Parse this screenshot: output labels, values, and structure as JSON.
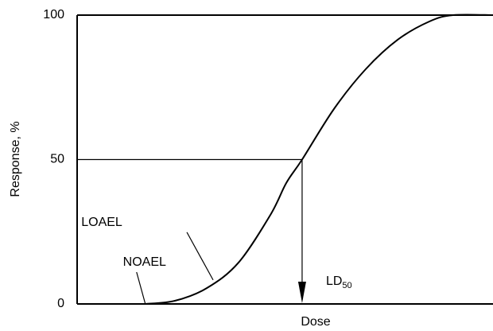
{
  "chart_data": {
    "type": "line",
    "xlabel": "Dose",
    "ylabel": "Response, %",
    "xlim": [
      0,
      100
    ],
    "ylim": [
      0,
      100
    ],
    "yticks": [
      0,
      50,
      100
    ],
    "series": [
      {
        "color": "#000000",
        "x": [
          16.4,
          23.5,
          31.2,
          38.8,
          46.5,
          50.3,
          54.1,
          61.8,
          69.4,
          77.1,
          84.7,
          90.4,
          100
        ],
        "values": [
          0,
          1.1,
          5.5,
          14.3,
          30.9,
          41.9,
          50,
          67.6,
          81.3,
          91.5,
          97.8,
          100,
          100
        ]
      }
    ],
    "annotations": [
      {
        "text": "NOAEL",
        "x": 16.4,
        "y": 0
      },
      {
        "text": "LOAEL",
        "x": 32.7,
        "y": 8.3
      }
    ],
    "ld50": {
      "text": "LD",
      "subscript": "50",
      "x": 54.1,
      "y": 50
    }
  }
}
